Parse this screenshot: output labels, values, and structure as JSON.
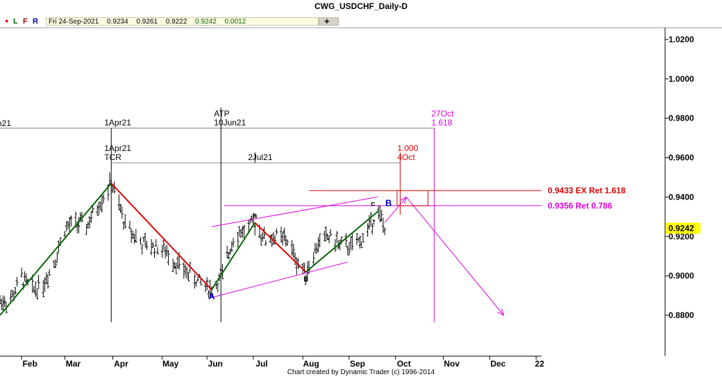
{
  "window": {
    "title": "CWG_USDCHF_Daily-D"
  },
  "toolbar": {
    "buttons": [
      "L",
      "F",
      "R"
    ],
    "date": "Fri 24-Sep-2021",
    "open": "0.9234",
    "high": "0.9261",
    "low": "0.9222",
    "close": "0.9242",
    "change": "0.0012",
    "plus": "+"
  },
  "footer": {
    "credit": "Chart created by Dynamic Trader  (c) 1996-2014"
  },
  "colors": {
    "red": "#dd0000",
    "green": "#006600",
    "magenta": "#dd00dd",
    "blue": "#0000cc",
    "last_price_box": "#ffff00"
  },
  "chart_data": {
    "type": "ohlc",
    "symbol": "USDCHF",
    "timeframe": "Daily",
    "x_range": [
      "2021-01-18",
      "2021-12-31"
    ],
    "y_range": [
      0.862,
      1.024
    ],
    "y_ticks": [
      "1.0200",
      "1.0000",
      "0.9800",
      "0.9600",
      "0.9400",
      "0.9200",
      "0.9000",
      "0.8800"
    ],
    "x_ticks": [
      {
        "label": "Feb",
        "date": "2021-02-01"
      },
      {
        "label": "Mar",
        "date": "2021-03-01"
      },
      {
        "label": "Apr",
        "date": "2021-04-01"
      },
      {
        "label": "May",
        "date": "2021-05-03"
      },
      {
        "label": "Jun",
        "date": "2021-06-01"
      },
      {
        "label": "Jul",
        "date": "2021-07-01"
      },
      {
        "label": "Aug",
        "date": "2021-08-02"
      },
      {
        "label": "Sep",
        "date": "2021-09-01"
      },
      {
        "label": "Oct",
        "date": "2021-10-01"
      },
      {
        "label": "Nov",
        "date": "2021-11-01"
      },
      {
        "label": "Dec",
        "date": "2021-12-01"
      },
      {
        "label": "22",
        "date": "2021-12-31"
      }
    ],
    "close_path": [
      [
        "2021-01-18",
        0.887
      ],
      [
        "2021-01-25",
        0.888
      ],
      [
        "2021-02-01",
        0.899
      ],
      [
        "2021-02-08",
        0.893
      ],
      [
        "2021-02-15",
        0.896
      ],
      [
        "2021-02-22",
        0.907
      ],
      [
        "2021-03-01",
        0.924
      ],
      [
        "2021-03-08",
        0.927
      ],
      [
        "2021-03-15",
        0.925
      ],
      [
        "2021-03-22",
        0.935
      ],
      [
        "2021-03-31",
        0.947
      ],
      [
        "2021-04-09",
        0.926
      ],
      [
        "2021-04-20",
        0.916
      ],
      [
        "2021-05-03",
        0.914
      ],
      [
        "2021-05-14",
        0.905
      ],
      [
        "2021-05-25",
        0.898
      ],
      [
        "2021-06-04",
        0.893
      ],
      [
        "2021-06-11",
        0.9
      ],
      [
        "2021-06-18",
        0.92
      ],
      [
        "2021-06-25",
        0.923
      ],
      [
        "2021-07-02",
        0.927
      ],
      [
        "2021-07-09",
        0.918
      ],
      [
        "2021-07-16",
        0.92
      ],
      [
        "2021-07-23",
        0.918
      ],
      [
        "2021-07-30",
        0.906
      ],
      [
        "2021-08-04",
        0.902
      ],
      [
        "2021-08-13",
        0.918
      ],
      [
        "2021-08-20",
        0.92
      ],
      [
        "2021-08-27",
        0.915
      ],
      [
        "2021-09-03",
        0.915
      ],
      [
        "2021-09-10",
        0.919
      ],
      [
        "2021-09-17",
        0.93
      ],
      [
        "2021-09-20",
        0.932
      ],
      [
        "2021-09-24",
        0.9242
      ]
    ],
    "last_price": "0.9242",
    "pivots": [
      {
        "label": "A",
        "date": "2021-06-04",
        "price": 0.893,
        "color": "blue"
      },
      {
        "label": "a",
        "date": "2021-07-02",
        "price": 0.927,
        "color": "black"
      },
      {
        "label": "b",
        "date": "2021-08-04",
        "price": 0.902,
        "color": "black"
      },
      {
        "label": "c",
        "date": "2021-09-20",
        "price": 0.933,
        "color": "black"
      },
      {
        "label": "B",
        "date": "2021-09-22",
        "price": 0.933,
        "color": "blue"
      }
    ],
    "wave_lines": [
      {
        "color": "green",
        "from": [
          "2021-01-18",
          0.88
        ],
        "to": [
          "2021-03-31",
          0.947
        ]
      },
      {
        "color": "red",
        "from": [
          "2021-03-31",
          0.947
        ],
        "to": [
          "2021-06-04",
          0.893
        ]
      },
      {
        "color": "green",
        "from": [
          "2021-06-04",
          0.893
        ],
        "to": [
          "2021-07-02",
          0.927
        ]
      },
      {
        "color": "red",
        "from": [
          "2021-07-02",
          0.927
        ],
        "to": [
          "2021-08-04",
          0.902
        ]
      },
      {
        "color": "green",
        "from": [
          "2021-08-04",
          0.902
        ],
        "to": [
          "2021-09-20",
          0.933
        ]
      }
    ],
    "channel_lines": [
      {
        "from": [
          "2021-06-04",
          0.925
        ],
        "to": [
          "2021-09-19",
          0.94
        ]
      },
      {
        "from": [
          "2021-06-04",
          0.889
        ],
        "to": [
          "2021-08-31",
          0.907
        ]
      }
    ],
    "projection_lines": [
      {
        "from": [
          "2021-09-24",
          0.927
        ],
        "to": [
          "2021-10-08",
          0.94
        ]
      },
      {
        "from": [
          "2021-10-08",
          0.94
        ],
        "to": [
          "2021-12-10",
          0.88
        ]
      }
    ],
    "price_levels": [
      {
        "label": "0.9433 EX Ret 1.618",
        "price": 0.9433,
        "color": "red",
        "from": "2021-08-06"
      },
      {
        "label": "0.9356 Ret 0.786",
        "price": 0.9356,
        "color": "magenta",
        "from": "2021-06-12"
      }
    ],
    "target_zone": {
      "dates": [
        "2021-10-02",
        "2021-10-22"
      ],
      "prices": [
        0.9356,
        0.9433
      ]
    },
    "time_annotations": [
      {
        "lines": [
          "1Apr21"
        ],
        "date": "2021-03-31",
        "level": 0.98
      },
      {
        "lines": [
          "ATP",
          "10Jun21"
        ],
        "date": "2021-06-10",
        "level": 0.98
      },
      {
        "lines": [
          "27Oct",
          "1.618"
        ],
        "date": "2021-10-26",
        "level": 0.98,
        "color": "magenta"
      },
      {
        "lines": [
          "1Apr21",
          "TCR"
        ],
        "date": "2021-03-31",
        "level": 0.96
      },
      {
        "lines": [
          "2Jul21"
        ],
        "date": "2021-07-02",
        "level": 0.96
      },
      {
        "lines": [
          "1.000",
          "4Oct"
        ],
        "date": "2021-10-04",
        "level": 0.96,
        "color": "red"
      }
    ],
    "edge_label": "n21"
  }
}
